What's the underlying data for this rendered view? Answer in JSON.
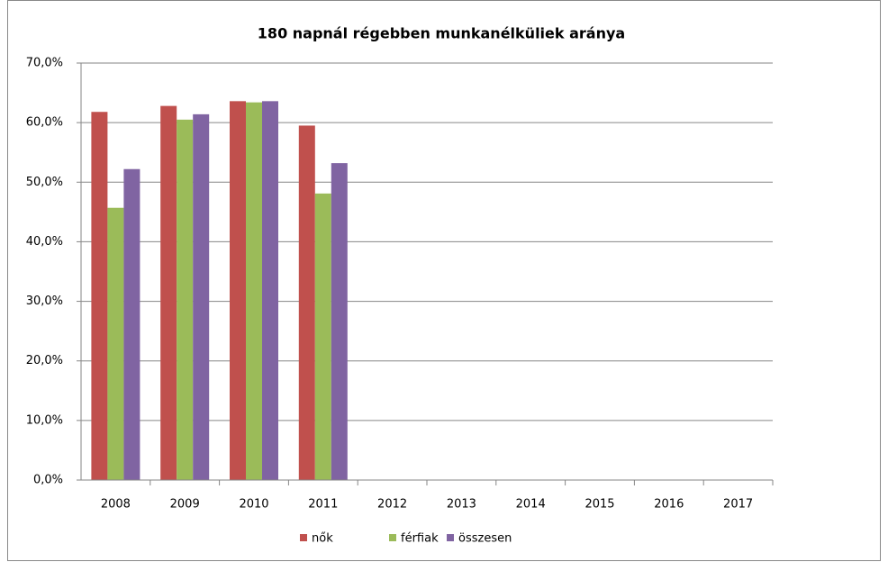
{
  "chart_data": {
    "type": "bar",
    "title": "180 napnál régebben munkanélküliek aránya",
    "categories": [
      "2008",
      "2009",
      "2010",
      "2011",
      "2012",
      "2013",
      "2014",
      "2015",
      "2016",
      "2017"
    ],
    "series": [
      {
        "name": "nők",
        "color": "#c0504d",
        "values": [
          61.8,
          62.8,
          63.6,
          59.5,
          null,
          null,
          null,
          null,
          null,
          null
        ]
      },
      {
        "name": "férfiak",
        "color": "#9bbb59",
        "values": [
          45.7,
          60.5,
          63.4,
          48.1,
          null,
          null,
          null,
          null,
          null,
          null
        ]
      },
      {
        "name": "összesen",
        "color": "#8064a2",
        "values": [
          52.2,
          61.4,
          63.6,
          53.2,
          null,
          null,
          null,
          null,
          null,
          null
        ]
      }
    ],
    "ylim": [
      0,
      70
    ],
    "yticks": [
      {
        "value": 0,
        "label": "0,0%"
      },
      {
        "value": 10,
        "label": "10,0%"
      },
      {
        "value": 20,
        "label": "20,0%"
      },
      {
        "value": 30,
        "label": "30,0%"
      },
      {
        "value": 40,
        "label": "40,0%"
      },
      {
        "value": 50,
        "label": "50,0%"
      },
      {
        "value": 60,
        "label": "60,0%"
      },
      {
        "value": 70,
        "label": "70,0%"
      }
    ],
    "grid": true,
    "legend": "bottom"
  }
}
